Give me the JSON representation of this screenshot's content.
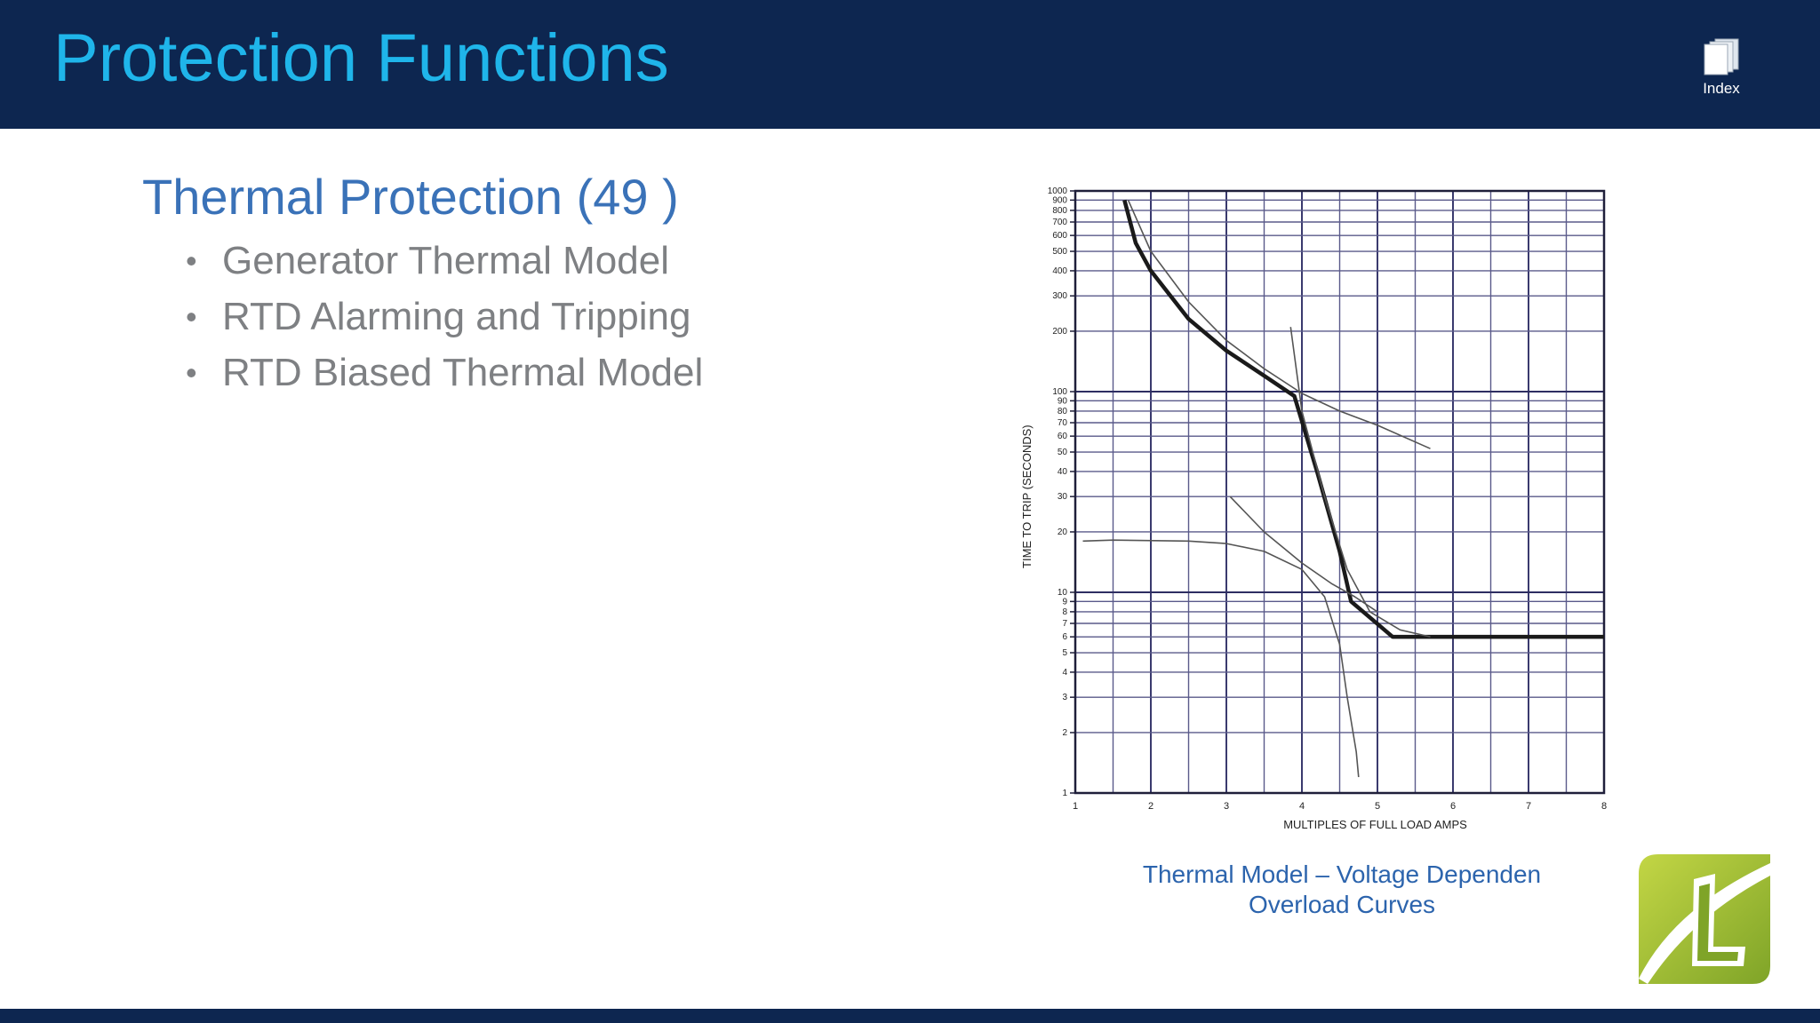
{
  "header": {
    "title": "Protection Functions",
    "index_label": "Index",
    "index_icon": "documents-stack-icon"
  },
  "content": {
    "section_heading": "Thermal Protection (49 )",
    "bullets": [
      "Generator Thermal Model",
      "RTD Alarming and Tripping",
      "RTD Biased Thermal Model"
    ]
  },
  "figure": {
    "caption_line1": "Thermal Model – Voltage Dependen",
    "caption_line2": "Overload Curves"
  },
  "chart_data": {
    "type": "line",
    "xlabel": "MULTIPLES OF FULL LOAD AMPS",
    "ylabel": "TIME TO TRIP (SECONDS)",
    "xlim": [
      1,
      8
    ],
    "ylim": [
      1,
      1000
    ],
    "y_scale": "log",
    "grid": true,
    "x_ticks": [
      "1",
      "2",
      "3",
      "4",
      "5",
      "6",
      "7",
      "8"
    ],
    "y_ticks": [
      {
        "value": 1,
        "label": "1"
      },
      {
        "value": 2,
        "label": "2"
      },
      {
        "value": 3,
        "label": "3"
      },
      {
        "value": 4,
        "label": "4"
      },
      {
        "value": 5,
        "label": "5"
      },
      {
        "value": 6,
        "label": "6"
      },
      {
        "value": 7,
        "label": "7"
      },
      {
        "value": 8,
        "label": "8"
      },
      {
        "value": 9,
        "label": "9"
      },
      {
        "value": 10,
        "label": "10"
      },
      {
        "value": 20,
        "label": "20"
      },
      {
        "value": 30,
        "label": "30"
      },
      {
        "value": 40,
        "label": "40"
      },
      {
        "value": 50,
        "label": "50"
      },
      {
        "value": 60,
        "label": "60"
      },
      {
        "value": 70,
        "label": "70"
      },
      {
        "value": 80,
        "label": "80"
      },
      {
        "value": 90,
        "label": "90"
      },
      {
        "value": 100,
        "label": "100"
      },
      {
        "value": 200,
        "label": "200"
      },
      {
        "value": 300,
        "label": "300"
      },
      {
        "value": 400,
        "label": "400"
      },
      {
        "value": 500,
        "label": "500"
      },
      {
        "value": 600,
        "label": "600"
      },
      {
        "value": 700,
        "label": "700"
      },
      {
        "value": 800,
        "label": "800"
      },
      {
        "value": 900,
        "label": "900"
      },
      {
        "value": 1000,
        "label": "1000"
      }
    ],
    "series": [
      {
        "style": "bold",
        "points": [
          [
            1.65,
            900
          ],
          [
            1.8,
            550
          ],
          [
            2,
            400
          ],
          [
            2.5,
            230
          ],
          [
            3,
            160
          ],
          [
            3.5,
            120
          ],
          [
            3.9,
            95
          ],
          [
            4.2,
            40
          ],
          [
            4.5,
            16
          ],
          [
            4.65,
            9
          ],
          [
            5.2,
            6
          ],
          [
            8,
            6
          ]
        ]
      },
      {
        "style": "thin",
        "points": [
          [
            1.7,
            900
          ],
          [
            2,
            500
          ],
          [
            2.5,
            280
          ],
          [
            3,
            180
          ],
          [
            3.5,
            130
          ],
          [
            4,
            98
          ],
          [
            4.5,
            80
          ],
          [
            5,
            68
          ],
          [
            5.7,
            52
          ]
        ]
      },
      {
        "style": "thin",
        "points": [
          [
            3.85,
            210
          ],
          [
            4,
            80
          ],
          [
            4.3,
            30
          ],
          [
            4.6,
            13
          ],
          [
            4.9,
            8
          ],
          [
            5.3,
            6.5
          ],
          [
            5.7,
            6
          ]
        ]
      },
      {
        "style": "thin",
        "points": [
          [
            3.05,
            30
          ],
          [
            3.5,
            20
          ],
          [
            4,
            14
          ],
          [
            4.4,
            11
          ],
          [
            4.7,
            9.5
          ],
          [
            5,
            8
          ]
        ]
      },
      {
        "style": "thin",
        "points": [
          [
            1.1,
            18
          ],
          [
            1.5,
            18.2
          ],
          [
            2.5,
            18
          ],
          [
            3,
            17.5
          ],
          [
            3.5,
            16
          ],
          [
            4,
            13
          ],
          [
            4.3,
            9.5
          ],
          [
            4.5,
            5.5
          ],
          [
            4.6,
            3
          ],
          [
            4.72,
            1.6
          ],
          [
            4.75,
            1.2
          ]
        ]
      }
    ]
  }
}
